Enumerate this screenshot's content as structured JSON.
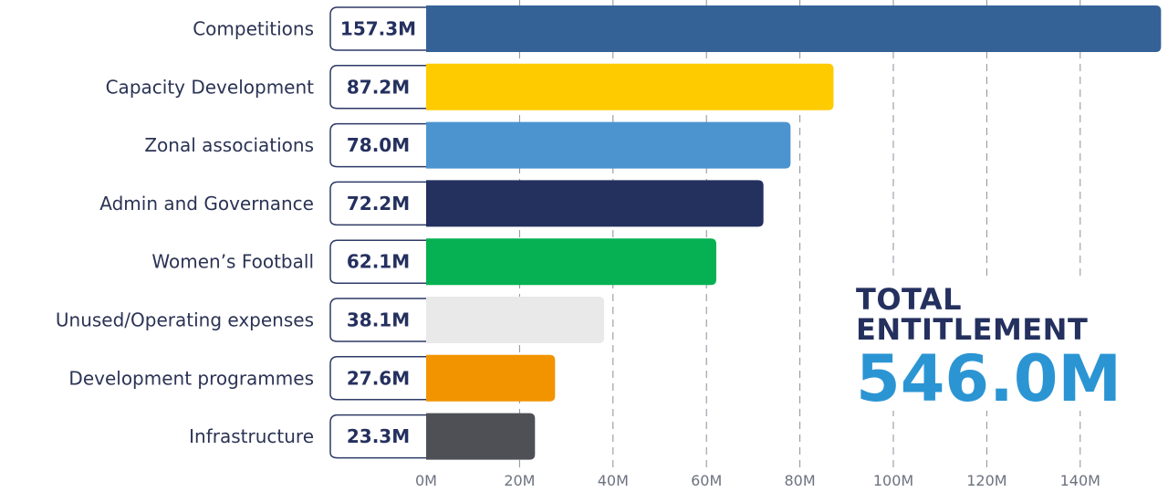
{
  "chart_data": {
    "type": "bar",
    "orientation": "horizontal",
    "categories": [
      "Competitions",
      "Capacity Development",
      "Zonal associations",
      "Admin and Governance",
      "Women’s Football",
      "Unused/Operating expenses",
      "Development programmes",
      "Infrastructure"
    ],
    "values": [
      157.3,
      87.2,
      78.0,
      72.2,
      62.1,
      38.1,
      27.6,
      23.3
    ],
    "value_labels": [
      "157.3M",
      "87.2M",
      "78.0M",
      "72.2M",
      "62.1M",
      "38.1M",
      "27.6M",
      "23.3M"
    ],
    "colors": [
      "#346296",
      "#fdcb00",
      "#4b94d0",
      "#24305e",
      "#05b152",
      "#e8e9e8",
      "#f29400",
      "#4f5055"
    ],
    "x_ticks": [
      "0M",
      "20M",
      "40M",
      "60M",
      "80M",
      "100M",
      "120M",
      "140M"
    ],
    "x_tick_values": [
      0,
      20,
      40,
      60,
      80,
      100,
      120,
      140
    ],
    "xlim": [
      0,
      160
    ],
    "grid": "vertical dashed",
    "title": "",
    "xlabel": "",
    "ylabel": ""
  },
  "total": {
    "label": "TOTAL ENTITLEMENT",
    "value": "546.0M"
  },
  "colors": {
    "text": "#24305e",
    "accent": "#2b95d3"
  }
}
